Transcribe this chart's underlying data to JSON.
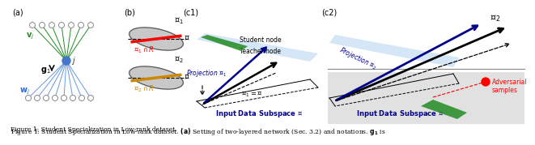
{
  "caption_normal": "Figure 1: Student Specialization in Low-rank dataset. ",
  "caption_bold_a": "(a)",
  "caption_after_a": " Setting of two-layered network (Sec. 3.2) and notations. ",
  "caption_bold_g1": "g₁",
  "caption_after_g1": " is",
  "background_color": "#ffffff",
  "fig_width": 6.4,
  "fig_height": 1.48,
  "panel_a_label": "(a)",
  "panel_b_label": "(b)",
  "panel_c1_label": "(c1)",
  "panel_c2_label": "(c2)",
  "green_color": "#228B22",
  "blue_color": "#00008B",
  "red_color": "#cc0000",
  "gold_color": "#cc8800",
  "gray_color": "#b0b0b0",
  "light_blue": "#c8dff5",
  "light_gray": "#d8d8d8"
}
